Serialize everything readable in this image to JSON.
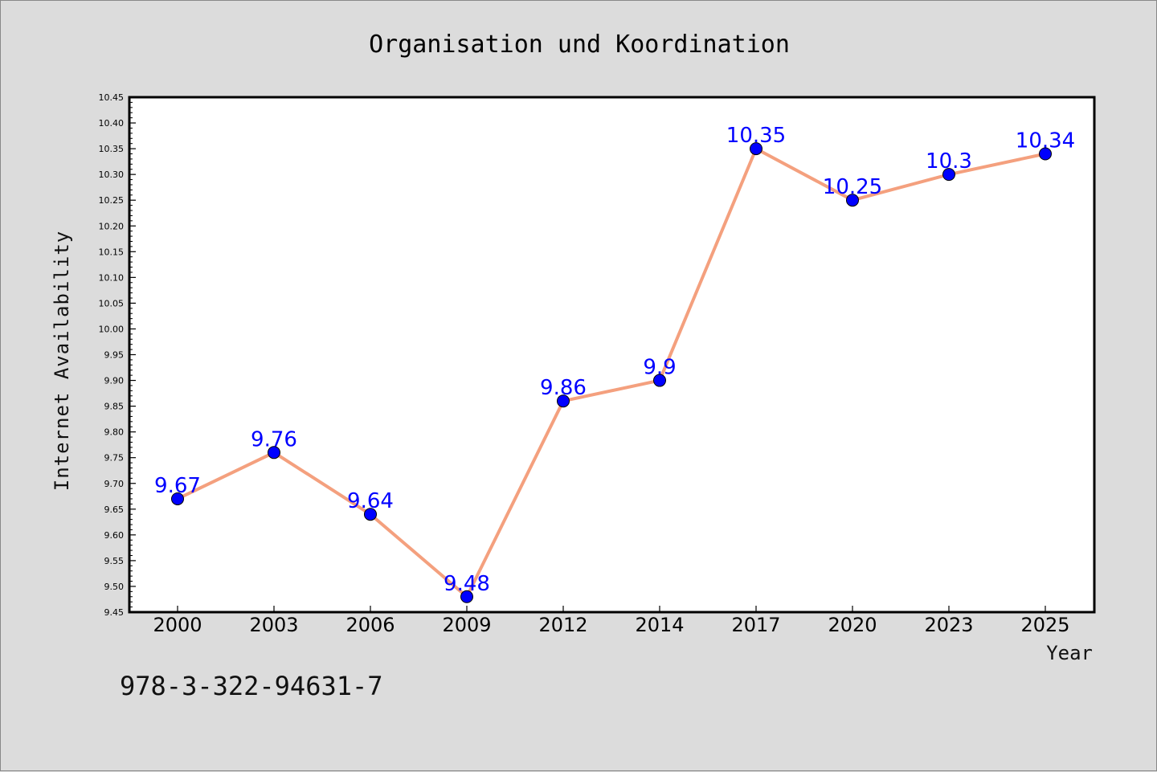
{
  "chart_data": {
    "type": "line",
    "title": "Organisation und Koordination",
    "xlabel": "Year",
    "ylabel": "Internet Availability",
    "categories": [
      "2000",
      "2003",
      "2006",
      "2009",
      "2012",
      "2014",
      "2017",
      "2020",
      "2023",
      "2025"
    ],
    "series": [
      {
        "values": [
          9.67,
          9.76,
          9.64,
          9.48,
          9.86,
          9.9,
          10.35,
          10.25,
          10.3,
          10.34
        ]
      }
    ],
    "data_labels": [
      "9.67",
      "9.76",
      "9.64",
      "9.48",
      "9.86",
      "9.9",
      "10.35",
      "10.25",
      "10.3",
      "10.34"
    ],
    "ylim": [
      9.45,
      10.45
    ],
    "yticks": [
      "9.45",
      "9.50",
      "9.55",
      "9.60",
      "9.65",
      "9.70",
      "9.75",
      "9.80",
      "9.85",
      "9.90",
      "9.95",
      "10.00",
      "10.05",
      "10.10",
      "10.15",
      "10.20",
      "10.25",
      "10.30",
      "10.35",
      "10.40",
      "10.45"
    ],
    "grid": false,
    "line_color": "#f4a07e",
    "marker_color": "#0000ff",
    "label_color": "#0000ff",
    "background": "#dcdcdc",
    "plot_background": "#ffffff"
  },
  "annotation": "978-3-322-94631-7"
}
